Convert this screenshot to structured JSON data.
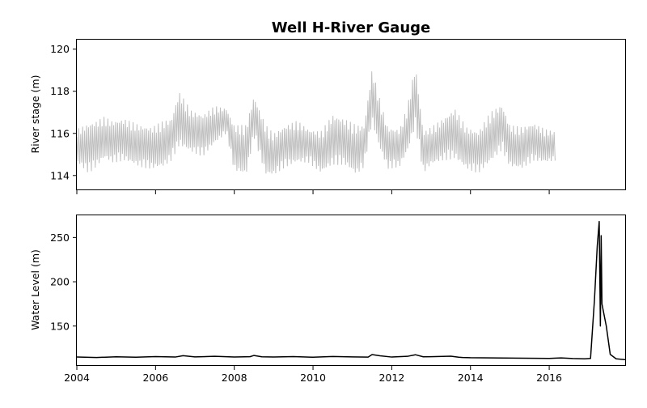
{
  "chart_data": [
    {
      "type": "line",
      "title": "Well H-River Gauge",
      "xlabel": "",
      "ylabel": "River stage (m)",
      "xlim": [
        2004.0,
        2017.95
      ],
      "ylim": [
        113.3,
        120.45
      ],
      "yticks": [
        114,
        116,
        118,
        120
      ],
      "xticks": [
        2004,
        2006,
        2008,
        2010,
        2012,
        2014,
        2016
      ],
      "x_ticklabels_shown": false,
      "grid": false,
      "series": [
        {
          "color": "#bfbfbf",
          "x": [
            2004.0,
            2004.3,
            2004.5,
            2004.7,
            2004.9,
            2005.2,
            2005.6,
            2005.9,
            2006.2,
            2006.4,
            2006.6,
            2006.9,
            2007.2,
            2007.5,
            2007.8,
            2008.0,
            2008.3,
            2008.5,
            2008.8,
            2009.0,
            2009.3,
            2009.6,
            2009.9,
            2010.2,
            2010.5,
            2010.8,
            2011.1,
            2011.3,
            2011.5,
            2011.7,
            2011.9,
            2012.2,
            2012.4,
            2012.6,
            2012.8,
            2013.0,
            2013.3,
            2013.6,
            2013.9,
            2014.2,
            2014.5,
            2014.8,
            2015.0,
            2015.3,
            2015.6,
            2015.9,
            2016.15
          ],
          "center": [
            115.4,
            115.3,
            115.5,
            115.8,
            115.6,
            115.7,
            115.4,
            115.3,
            115.5,
            115.7,
            116.7,
            116.1,
            115.9,
            116.4,
            116.6,
            115.3,
            115.2,
            116.8,
            115.2,
            115.0,
            115.4,
            115.6,
            115.4,
            115.1,
            115.7,
            115.6,
            115.2,
            115.4,
            117.8,
            116.4,
            115.3,
            115.3,
            116.2,
            117.8,
            115.1,
            115.4,
            115.7,
            116.0,
            115.3,
            115.1,
            115.8,
            116.3,
            115.4,
            115.3,
            115.6,
            115.4,
            115.4
          ],
          "amplitude": [
            0.8,
            1.2,
            1.1,
            1.0,
            1.0,
            1.0,
            1.0,
            1.0,
            1.1,
            1.0,
            1.3,
            1.0,
            1.0,
            0.9,
            0.6,
            1.1,
            1.2,
            1.0,
            1.2,
            1.0,
            1.0,
            1.0,
            0.8,
            1.0,
            1.2,
            1.1,
            1.2,
            1.0,
            1.3,
            1.2,
            1.0,
            0.9,
            1.1,
            1.5,
            1.0,
            0.9,
            1.0,
            1.2,
            1.0,
            1.0,
            1.2,
            1.1,
            1.0,
            1.0,
            0.9,
            0.8,
            0.7
          ],
          "min": 113.8,
          "max": 119.6
        }
      ]
    },
    {
      "type": "line",
      "title": "",
      "xlabel": "",
      "ylabel": "Water Level (m)",
      "xlim": [
        2004.0,
        2017.95
      ],
      "ylim": [
        105,
        275
      ],
      "yticks": [
        150,
        200,
        250
      ],
      "xticks": [
        2004,
        2006,
        2008,
        2010,
        2012,
        2014,
        2016
      ],
      "xticklabels": [
        "2004",
        "2006",
        "2008",
        "2010",
        "2012",
        "2014",
        "2016"
      ],
      "grid": false,
      "series": [
        {
          "color": "#000000",
          "x": [
            2004.0,
            2004.5,
            2005.0,
            2005.5,
            2006.0,
            2006.5,
            2006.7,
            2007.0,
            2007.5,
            2008.0,
            2008.4,
            2008.5,
            2008.7,
            2009.0,
            2009.5,
            2010.0,
            2010.5,
            2011.0,
            2011.4,
            2011.5,
            2011.7,
            2012.0,
            2012.4,
            2012.6,
            2012.8,
            2013.0,
            2013.5,
            2013.7,
            2013.8,
            2014.0,
            2016.0,
            2016.3,
            2016.6,
            2016.9,
            2017.05,
            2017.15,
            2017.22,
            2017.27,
            2017.3,
            2017.32,
            2017.34,
            2017.37,
            2017.45,
            2017.55,
            2017.7,
            2017.95
          ],
          "y": [
            115,
            114.5,
            115.3,
            114.8,
            115.5,
            115.0,
            116.5,
            115.2,
            115.8,
            115.0,
            115.4,
            116.8,
            115.3,
            115.0,
            115.5,
            114.8,
            115.6,
            115.2,
            114.9,
            117.8,
            116.4,
            115.0,
            115.8,
            117.6,
            115.3,
            115.4,
            116.0,
            114.8,
            114.5,
            114.2,
            113.5,
            114.0,
            113.3,
            113.0,
            113.4,
            180.0,
            240.0,
            268.0,
            150.0,
            252.0,
            175.0,
            168.0,
            150.0,
            118.0,
            113.0,
            112.0
          ]
        }
      ]
    }
  ]
}
